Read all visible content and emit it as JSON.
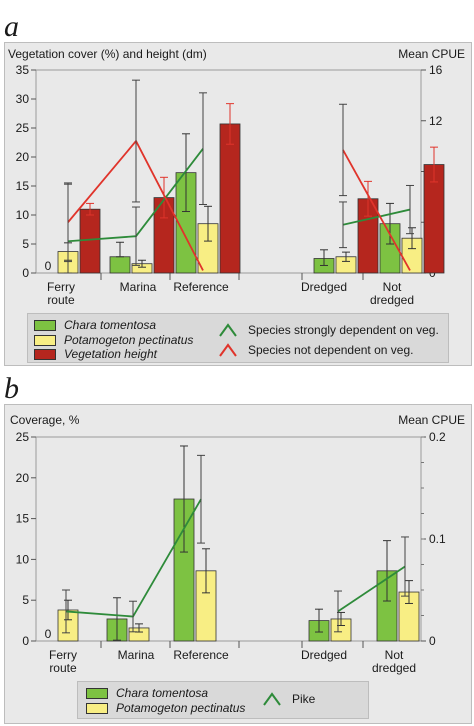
{
  "panels": {
    "a": {
      "letter": "a",
      "left_axis_label": "Vegetation cover (%) and height (dm)",
      "right_axis_label": "Mean CPUE",
      "legend": {
        "chara": "Chara tomentosa",
        "potamogeton": "Potamogeton pectinatus",
        "height": "Vegetation height",
        "green_line": "Species strongly dependent on veg.",
        "red_line": "Species not dependent on veg."
      }
    },
    "b": {
      "letter": "b",
      "left_axis_label": "Coverage, %",
      "right_axis_label": "Mean CPUE",
      "legend": {
        "chara": "Chara tomentosa",
        "potamogeton": "Potamogeton pectinatus",
        "pike": "Pike"
      }
    }
  },
  "chart_data": [
    {
      "type": "bar",
      "panel": "a",
      "categories": [
        [
          "Ferry",
          "route"
        ],
        [
          "Marina"
        ],
        [
          "Reference"
        ],
        [
          "Dredged"
        ],
        [
          "Not",
          "dredged"
        ]
      ],
      "left_ylim": [
        0,
        35
      ],
      "left_ticks": [
        "0",
        "5",
        "10",
        "15",
        "20",
        "25",
        "30",
        "35"
      ],
      "right_ylim": [
        0,
        16
      ],
      "right_ticks": [
        "0",
        "4",
        "8",
        "12",
        "16"
      ],
      "zero_label": "0",
      "colors": {
        "chara": "#7dc242",
        "potamogeton": "#f8ee84",
        "height": "#b5261e",
        "green_line": "#2e8b3a",
        "red_line": "#e0342b",
        "error": "#333333",
        "height_error": "#e0342b"
      },
      "series": [
        {
          "key": "chara",
          "name": "Chara tomentosa",
          "values": [
            0,
            2.8,
            17.3,
            2.5,
            8.5
          ],
          "err_low": [
            0,
            0,
            6.7,
            1.2,
            3.5
          ],
          "err_high": [
            0,
            2.5,
            6.7,
            1.5,
            3.5
          ]
        },
        {
          "key": "potamogeton",
          "name": "Potamogeton pectinatus",
          "values": [
            3.7,
            1.6,
            8.5,
            2.8,
            6.0
          ],
          "err_low": [
            1.5,
            0.6,
            3.0,
            0.8,
            1.8
          ],
          "err_high": [
            1.5,
            0.6,
            3.0,
            0.8,
            1.8
          ]
        },
        {
          "key": "height",
          "name": "Vegetation height",
          "values": [
            11.0,
            13.0,
            25.7,
            12.8,
            18.7
          ],
          "err_low": [
            1.0,
            3.5,
            3.5,
            3.0,
            3.0
          ],
          "err_high": [
            1.0,
            3.5,
            3.5,
            3.0,
            3.0
          ]
        }
      ],
      "lines": [
        {
          "key": "green_line",
          "name": "Species strongly dependent on veg.",
          "segments": [
            {
              "x": [
                0,
                1,
                2
              ],
              "y": [
                2.5,
                2.9,
                9.8
              ],
              "err": [
                4.5,
                2.3,
                4.4
              ]
            },
            {
              "x": [
                3,
                4
              ],
              "y": [
                3.8,
                5.0
              ],
              "err": [
                1.8,
                1.9
              ]
            }
          ]
        },
        {
          "key": "red_line",
          "name": "Species not dependent on veg.",
          "segments": [
            {
              "x": [
                0,
                1,
                2
              ],
              "y": [
                4.0,
                10.4,
                0.2
              ],
              "err": [
                3.1,
                4.8,
                0
              ]
            },
            {
              "x": [
                3,
                4
              ],
              "y": [
                9.7,
                0.2
              ],
              "err": [
                3.6,
                0
              ]
            }
          ]
        }
      ]
    },
    {
      "type": "bar",
      "panel": "b",
      "categories": [
        [
          "Ferry",
          "route"
        ],
        [
          "Marina"
        ],
        [
          "Reference"
        ],
        [
          "Dredged"
        ],
        [
          "Not",
          "dredged"
        ]
      ],
      "left_ylim": [
        0,
        25
      ],
      "left_ticks": [
        "0",
        "5",
        "10",
        "15",
        "20",
        "25"
      ],
      "right_ylim": [
        0,
        0.2
      ],
      "right_ticks": [
        "0",
        "0.1",
        "0.2"
      ],
      "zero_label": "0",
      "colors": {
        "chara": "#7dc242",
        "potamogeton": "#f8ee84",
        "pike": "#2e8b3a",
        "error": "#333333"
      },
      "series": [
        {
          "key": "chara",
          "name": "Chara tomentosa",
          "values": [
            0,
            2.7,
            17.4,
            2.5,
            8.6
          ],
          "err_low": [
            0,
            2.6,
            6.5,
            1.4,
            3.7
          ],
          "err_high": [
            0,
            2.6,
            6.5,
            1.4,
            3.7
          ]
        },
        {
          "key": "potamogeton",
          "name": "Potamogeton pectinatus",
          "values": [
            3.8,
            1.6,
            8.6,
            2.7,
            6.0
          ],
          "err_low": [
            1.2,
            0.5,
            2.7,
            0.8,
            1.4
          ],
          "err_high": [
            1.2,
            0.5,
            2.7,
            0.8,
            1.4
          ]
        }
      ],
      "lines": [
        {
          "key": "pike",
          "name": "Pike",
          "segments": [
            {
              "x": [
                0,
                1,
                2
              ],
              "y": [
                0.029,
                0.024,
                0.139
              ],
              "err": [
                0.021,
                0.015,
                0.043
              ]
            },
            {
              "x": [
                3,
                4
              ],
              "y": [
                0.029,
                0.073
              ],
              "err": [
                0.02,
                0.029
              ]
            }
          ]
        }
      ]
    }
  ]
}
